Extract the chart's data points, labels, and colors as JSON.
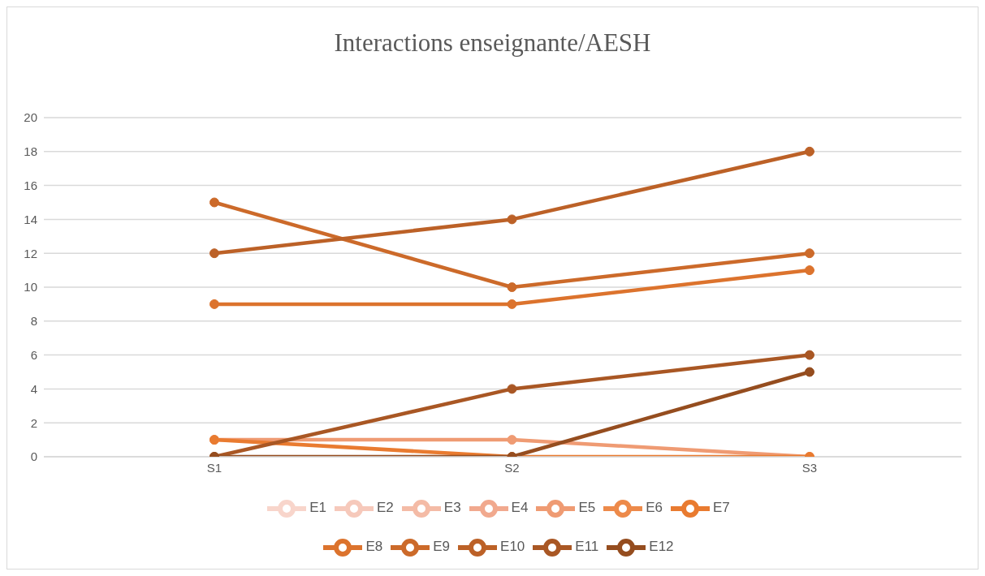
{
  "chart_data": {
    "type": "line",
    "title": "Interactions enseignante/AESH",
    "categories": [
      "S1",
      "S2",
      "S3"
    ],
    "series": [
      {
        "name": "E1",
        "color": "#f8d5cb",
        "values": [
          null,
          null,
          null
        ]
      },
      {
        "name": "E2",
        "color": "#f6c9bb",
        "values": [
          null,
          null,
          null
        ]
      },
      {
        "name": "E3",
        "color": "#f4bba6",
        "values": [
          null,
          null,
          null
        ]
      },
      {
        "name": "E4",
        "color": "#f1a98e",
        "values": [
          null,
          null,
          null
        ]
      },
      {
        "name": "E5",
        "color": "#ef9b73",
        "values": [
          1,
          1,
          0
        ]
      },
      {
        "name": "E6",
        "color": "#ed8a4a",
        "values": [
          null,
          null,
          null
        ]
      },
      {
        "name": "E7",
        "color": "#e97b30",
        "values": [
          1,
          0,
          0
        ]
      },
      {
        "name": "E8",
        "color": "#dc732d",
        "values": [
          9,
          9,
          11
        ]
      },
      {
        "name": "E9",
        "color": "#cc6a2a",
        "values": [
          15,
          10,
          12
        ]
      },
      {
        "name": "E10",
        "color": "#bc6127",
        "values": [
          12,
          14,
          18
        ]
      },
      {
        "name": "E11",
        "color": "#a95724",
        "values": [
          0,
          4,
          6
        ]
      },
      {
        "name": "E12",
        "color": "#954d1f",
        "values": [
          0,
          0,
          5
        ]
      }
    ],
    "ylim": [
      0,
      20
    ],
    "yticks": [
      0,
      2,
      4,
      6,
      8,
      10,
      12,
      14,
      16,
      18,
      20
    ],
    "grid": "y",
    "legend": "bottom",
    "marker": "circle",
    "line_style": "solid"
  }
}
